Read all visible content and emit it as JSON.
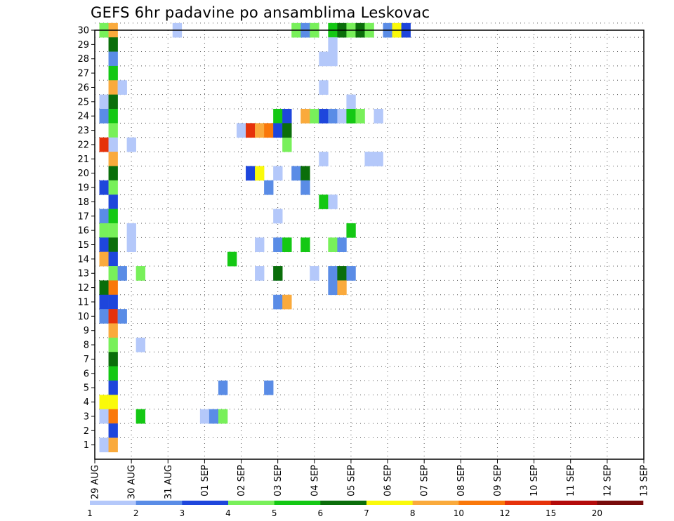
{
  "chart_data": {
    "type": "heatmap",
    "title": "GEFS 6hr padavine po ansamblima Leskovac",
    "xlabel": "",
    "ylabel": "",
    "x_ticks": [
      "29 AUG",
      "30 AUG",
      "31 AUG",
      "01 SEP",
      "02 SEP",
      "03 SEP",
      "04 SEP",
      "05 SEP",
      "06 SEP",
      "07 SEP",
      "08 SEP",
      "09 SEP",
      "10 SEP",
      "11 SEP",
      "12 SEP",
      "13 SEP"
    ],
    "y_ticks": [
      "1",
      "2",
      "3",
      "4",
      "5",
      "6",
      "7",
      "8",
      "9",
      "10",
      "11",
      "12",
      "13",
      "14",
      "15",
      "16",
      "17",
      "18",
      "19",
      "20",
      "21",
      "22",
      "23",
      "24",
      "25",
      "26",
      "27",
      "28",
      "29",
      "30"
    ],
    "time_step_hours": 6,
    "grid": "dotted",
    "colorbar": {
      "position": "bottom",
      "labels": [
        "1",
        "2",
        "3",
        "4",
        "5",
        "6",
        "7",
        "8",
        "10",
        "12",
        "15",
        "20"
      ],
      "colors": [
        "#b4c8fa",
        "#5a8ce6",
        "#1e46dc",
        "#78f05a",
        "#14c814",
        "#0a6e0a",
        "#fafa0a",
        "#faaa3c",
        "#fa780a",
        "#e6320a",
        "#b40a0a",
        "#780a0a"
      ]
    },
    "cells": [
      {
        "t": 1,
        "m": 30,
        "c": 4
      },
      {
        "t": 2,
        "m": 30,
        "c": 8
      },
      {
        "t": 9,
        "m": 30,
        "c": 1
      },
      {
        "t": 22,
        "m": 30,
        "c": 4
      },
      {
        "t": 23,
        "m": 30,
        "c": 2
      },
      {
        "t": 24,
        "m": 30,
        "c": 4
      },
      {
        "t": 26,
        "m": 30,
        "c": 5
      },
      {
        "t": 27,
        "m": 30,
        "c": 6
      },
      {
        "t": 28,
        "m": 30,
        "c": 4
      },
      {
        "t": 29,
        "m": 30,
        "c": 6
      },
      {
        "t": 30,
        "m": 30,
        "c": 4
      },
      {
        "t": 32,
        "m": 30,
        "c": 2
      },
      {
        "t": 33,
        "m": 30,
        "c": 7
      },
      {
        "t": 34,
        "m": 30,
        "c": 3
      },
      {
        "t": 2,
        "m": 29,
        "c": 6
      },
      {
        "t": 26,
        "m": 29,
        "c": 1
      },
      {
        "t": 2,
        "m": 28,
        "c": 2
      },
      {
        "t": 25,
        "m": 28,
        "c": 1
      },
      {
        "t": 26,
        "m": 28,
        "c": 1
      },
      {
        "t": 2,
        "m": 27,
        "c": 5
      },
      {
        "t": 2,
        "m": 26,
        "c": 8
      },
      {
        "t": 3,
        "m": 26,
        "c": 1
      },
      {
        "t": 25,
        "m": 26,
        "c": 1
      },
      {
        "t": 1,
        "m": 25,
        "c": 1
      },
      {
        "t": 2,
        "m": 25,
        "c": 6
      },
      {
        "t": 28,
        "m": 25,
        "c": 1
      },
      {
        "t": 1,
        "m": 24,
        "c": 2
      },
      {
        "t": 2,
        "m": 24,
        "c": 5
      },
      {
        "t": 20,
        "m": 24,
        "c": 5
      },
      {
        "t": 21,
        "m": 24,
        "c": 3
      },
      {
        "t": 23,
        "m": 24,
        "c": 8
      },
      {
        "t": 24,
        "m": 24,
        "c": 4
      },
      {
        "t": 25,
        "m": 24,
        "c": 3
      },
      {
        "t": 26,
        "m": 24,
        "c": 2
      },
      {
        "t": 27,
        "m": 24,
        "c": 1
      },
      {
        "t": 28,
        "m": 24,
        "c": 5
      },
      {
        "t": 29,
        "m": 24,
        "c": 4
      },
      {
        "t": 31,
        "m": 24,
        "c": 1
      },
      {
        "t": 2,
        "m": 23,
        "c": 4
      },
      {
        "t": 1,
        "m": 22,
        "c": 10
      },
      {
        "t": 2,
        "m": 22,
        "c": 1
      },
      {
        "t": 4,
        "m": 22,
        "c": 1
      },
      {
        "t": 21,
        "m": 22,
        "c": 4
      },
      {
        "t": 2,
        "m": 21,
        "c": 8
      },
      {
        "t": 25,
        "m": 21,
        "c": 1
      },
      {
        "t": 30,
        "m": 21,
        "c": 1
      },
      {
        "t": 31,
        "m": 21,
        "c": 1
      },
      {
        "t": 2,
        "m": 20,
        "c": 6
      },
      {
        "t": 20,
        "m": 20,
        "c": 1
      },
      {
        "t": 22,
        "m": 20,
        "c": 2
      },
      {
        "t": 23,
        "m": 20,
        "c": 6
      },
      {
        "t": 1,
        "m": 19,
        "c": 3
      },
      {
        "t": 2,
        "m": 19,
        "c": 4
      },
      {
        "t": 23,
        "m": 19,
        "c": 2
      },
      {
        "t": 2,
        "m": 18,
        "c": 3
      },
      {
        "t": 25,
        "m": 18,
        "c": 5
      },
      {
        "t": 26,
        "m": 18,
        "c": 1
      },
      {
        "t": 1,
        "m": 17,
        "c": 2
      },
      {
        "t": 2,
        "m": 17,
        "c": 5
      },
      {
        "t": 1,
        "m": 16,
        "c": 4
      },
      {
        "t": 2,
        "m": 16,
        "c": 4
      },
      {
        "t": 4,
        "m": 16,
        "c": 1
      },
      {
        "t": 28,
        "m": 16,
        "c": 5
      },
      {
        "t": 1,
        "m": 15,
        "c": 3
      },
      {
        "t": 2,
        "m": 15,
        "c": 6
      },
      {
        "t": 4,
        "m": 15,
        "c": 1
      },
      {
        "t": 20,
        "m": 15,
        "c": 2
      },
      {
        "t": 21,
        "m": 15,
        "c": 5
      },
      {
        "t": 23,
        "m": 15,
        "c": 5
      },
      {
        "t": 26,
        "m": 15,
        "c": 4
      },
      {
        "t": 27,
        "m": 15,
        "c": 2
      },
      {
        "t": 1,
        "m": 14,
        "c": 8
      },
      {
        "t": 2,
        "m": 14,
        "c": 3
      },
      {
        "t": 2,
        "m": 13,
        "c": 4
      },
      {
        "t": 3,
        "m": 13,
        "c": 2
      },
      {
        "t": 20,
        "m": 13,
        "c": 1
      },
      {
        "t": 24,
        "m": 13,
        "c": 1
      },
      {
        "t": 26,
        "m": 13,
        "c": 2
      },
      {
        "t": 27,
        "m": 13,
        "c": 6
      },
      {
        "t": 28,
        "m": 13,
        "c": 2
      },
      {
        "t": 1,
        "m": 12,
        "c": 6
      },
      {
        "t": 2,
        "m": 12,
        "c": 9
      },
      {
        "t": 26,
        "m": 12,
        "c": 2
      },
      {
        "t": 27,
        "m": 12,
        "c": 8
      },
      {
        "t": 1,
        "m": 11,
        "c": 3
      },
      {
        "t": 2,
        "m": 11,
        "c": 3
      },
      {
        "t": 20,
        "m": 11,
        "c": 2
      },
      {
        "t": 21,
        "m": 11,
        "c": 8
      },
      {
        "t": 1,
        "m": 10,
        "c": 2
      },
      {
        "t": 2,
        "m": 10,
        "c": 10
      },
      {
        "t": 3,
        "m": 10,
        "c": 2
      },
      {
        "t": 2,
        "m": 9,
        "c": 8
      },
      {
        "t": 2,
        "m": 8,
        "c": 4
      },
      {
        "t": 2,
        "m": 7,
        "c": 6
      },
      {
        "t": 2,
        "m": 6,
        "c": 5
      },
      {
        "t": 2,
        "m": 5,
        "c": 3
      },
      {
        "t": 1,
        "m": 4,
        "c": 7
      },
      {
        "t": 2,
        "m": 4,
        "c": 7
      },
      {
        "t": 1,
        "m": 3,
        "c": 1
      },
      {
        "t": 2,
        "m": 3,
        "c": 9
      },
      {
        "t": 2,
        "m": 2,
        "c": 3
      },
      {
        "t": 1,
        "m": 1,
        "c": 1
      },
      {
        "t": 2,
        "m": 1,
        "c": 8
      },
      {
        "t": 5,
        "m": 3,
        "c": 5
      },
      {
        "t": 5,
        "m": 13,
        "c": 4
      },
      {
        "t": 5,
        "m": 8,
        "c": 1
      },
      {
        "t": 12,
        "m": 3,
        "c": 1
      },
      {
        "t": 13,
        "m": 3,
        "c": 2
      },
      {
        "t": 14,
        "m": 3,
        "c": 4
      },
      {
        "t": 14,
        "m": 5,
        "c": 2
      },
      {
        "t": 15,
        "m": 14,
        "c": 5
      },
      {
        "t": 16,
        "m": 23,
        "c": 1
      },
      {
        "t": 17,
        "m": 23,
        "c": 10
      },
      {
        "t": 18,
        "m": 23,
        "c": 8
      },
      {
        "t": 19,
        "m": 23,
        "c": 9
      },
      {
        "t": 20,
        "m": 23,
        "c": 3
      },
      {
        "t": 21,
        "m": 23,
        "c": 6
      },
      {
        "t": 17,
        "m": 20,
        "c": 3
      },
      {
        "t": 18,
        "m": 20,
        "c": 7
      },
      {
        "t": 19,
        "m": 19,
        "c": 2
      },
      {
        "t": 18,
        "m": 15,
        "c": 1
      },
      {
        "t": 18,
        "m": 13,
        "c": 1
      },
      {
        "t": 19,
        "m": 5,
        "c": 2
      },
      {
        "t": 20,
        "m": 17,
        "c": 1
      },
      {
        "t": 20,
        "m": 13,
        "c": 6
      }
    ]
  }
}
